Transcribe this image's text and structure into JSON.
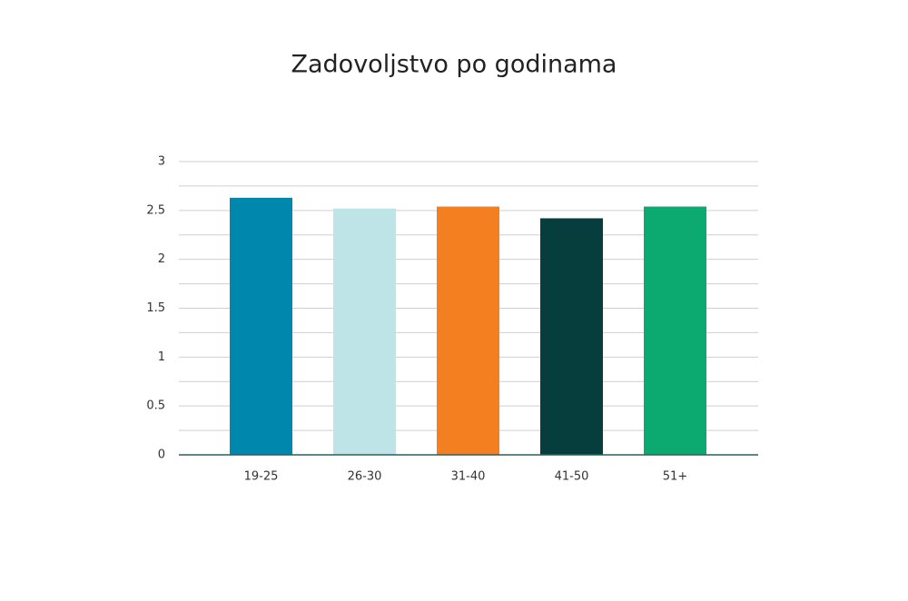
{
  "chart_data": {
    "type": "bar",
    "title": "Zadovoljstvo po godinama",
    "categories": [
      "19-25",
      "26-30",
      "31-40",
      "41-50",
      "51+"
    ],
    "values": [
      2.63,
      2.52,
      2.54,
      2.42,
      2.54
    ],
    "colors": [
      "#0087ad",
      "#bfe4e7",
      "#f47f20",
      "#063d3d",
      "#0ca970"
    ],
    "ylim": [
      0,
      3
    ],
    "yticks": [
      0,
      0.5,
      1,
      1.5,
      2,
      2.5,
      3
    ],
    "minor_yticks": [
      0.25,
      0.75,
      1.25,
      1.75,
      2.25,
      2.75
    ],
    "grid": true
  }
}
